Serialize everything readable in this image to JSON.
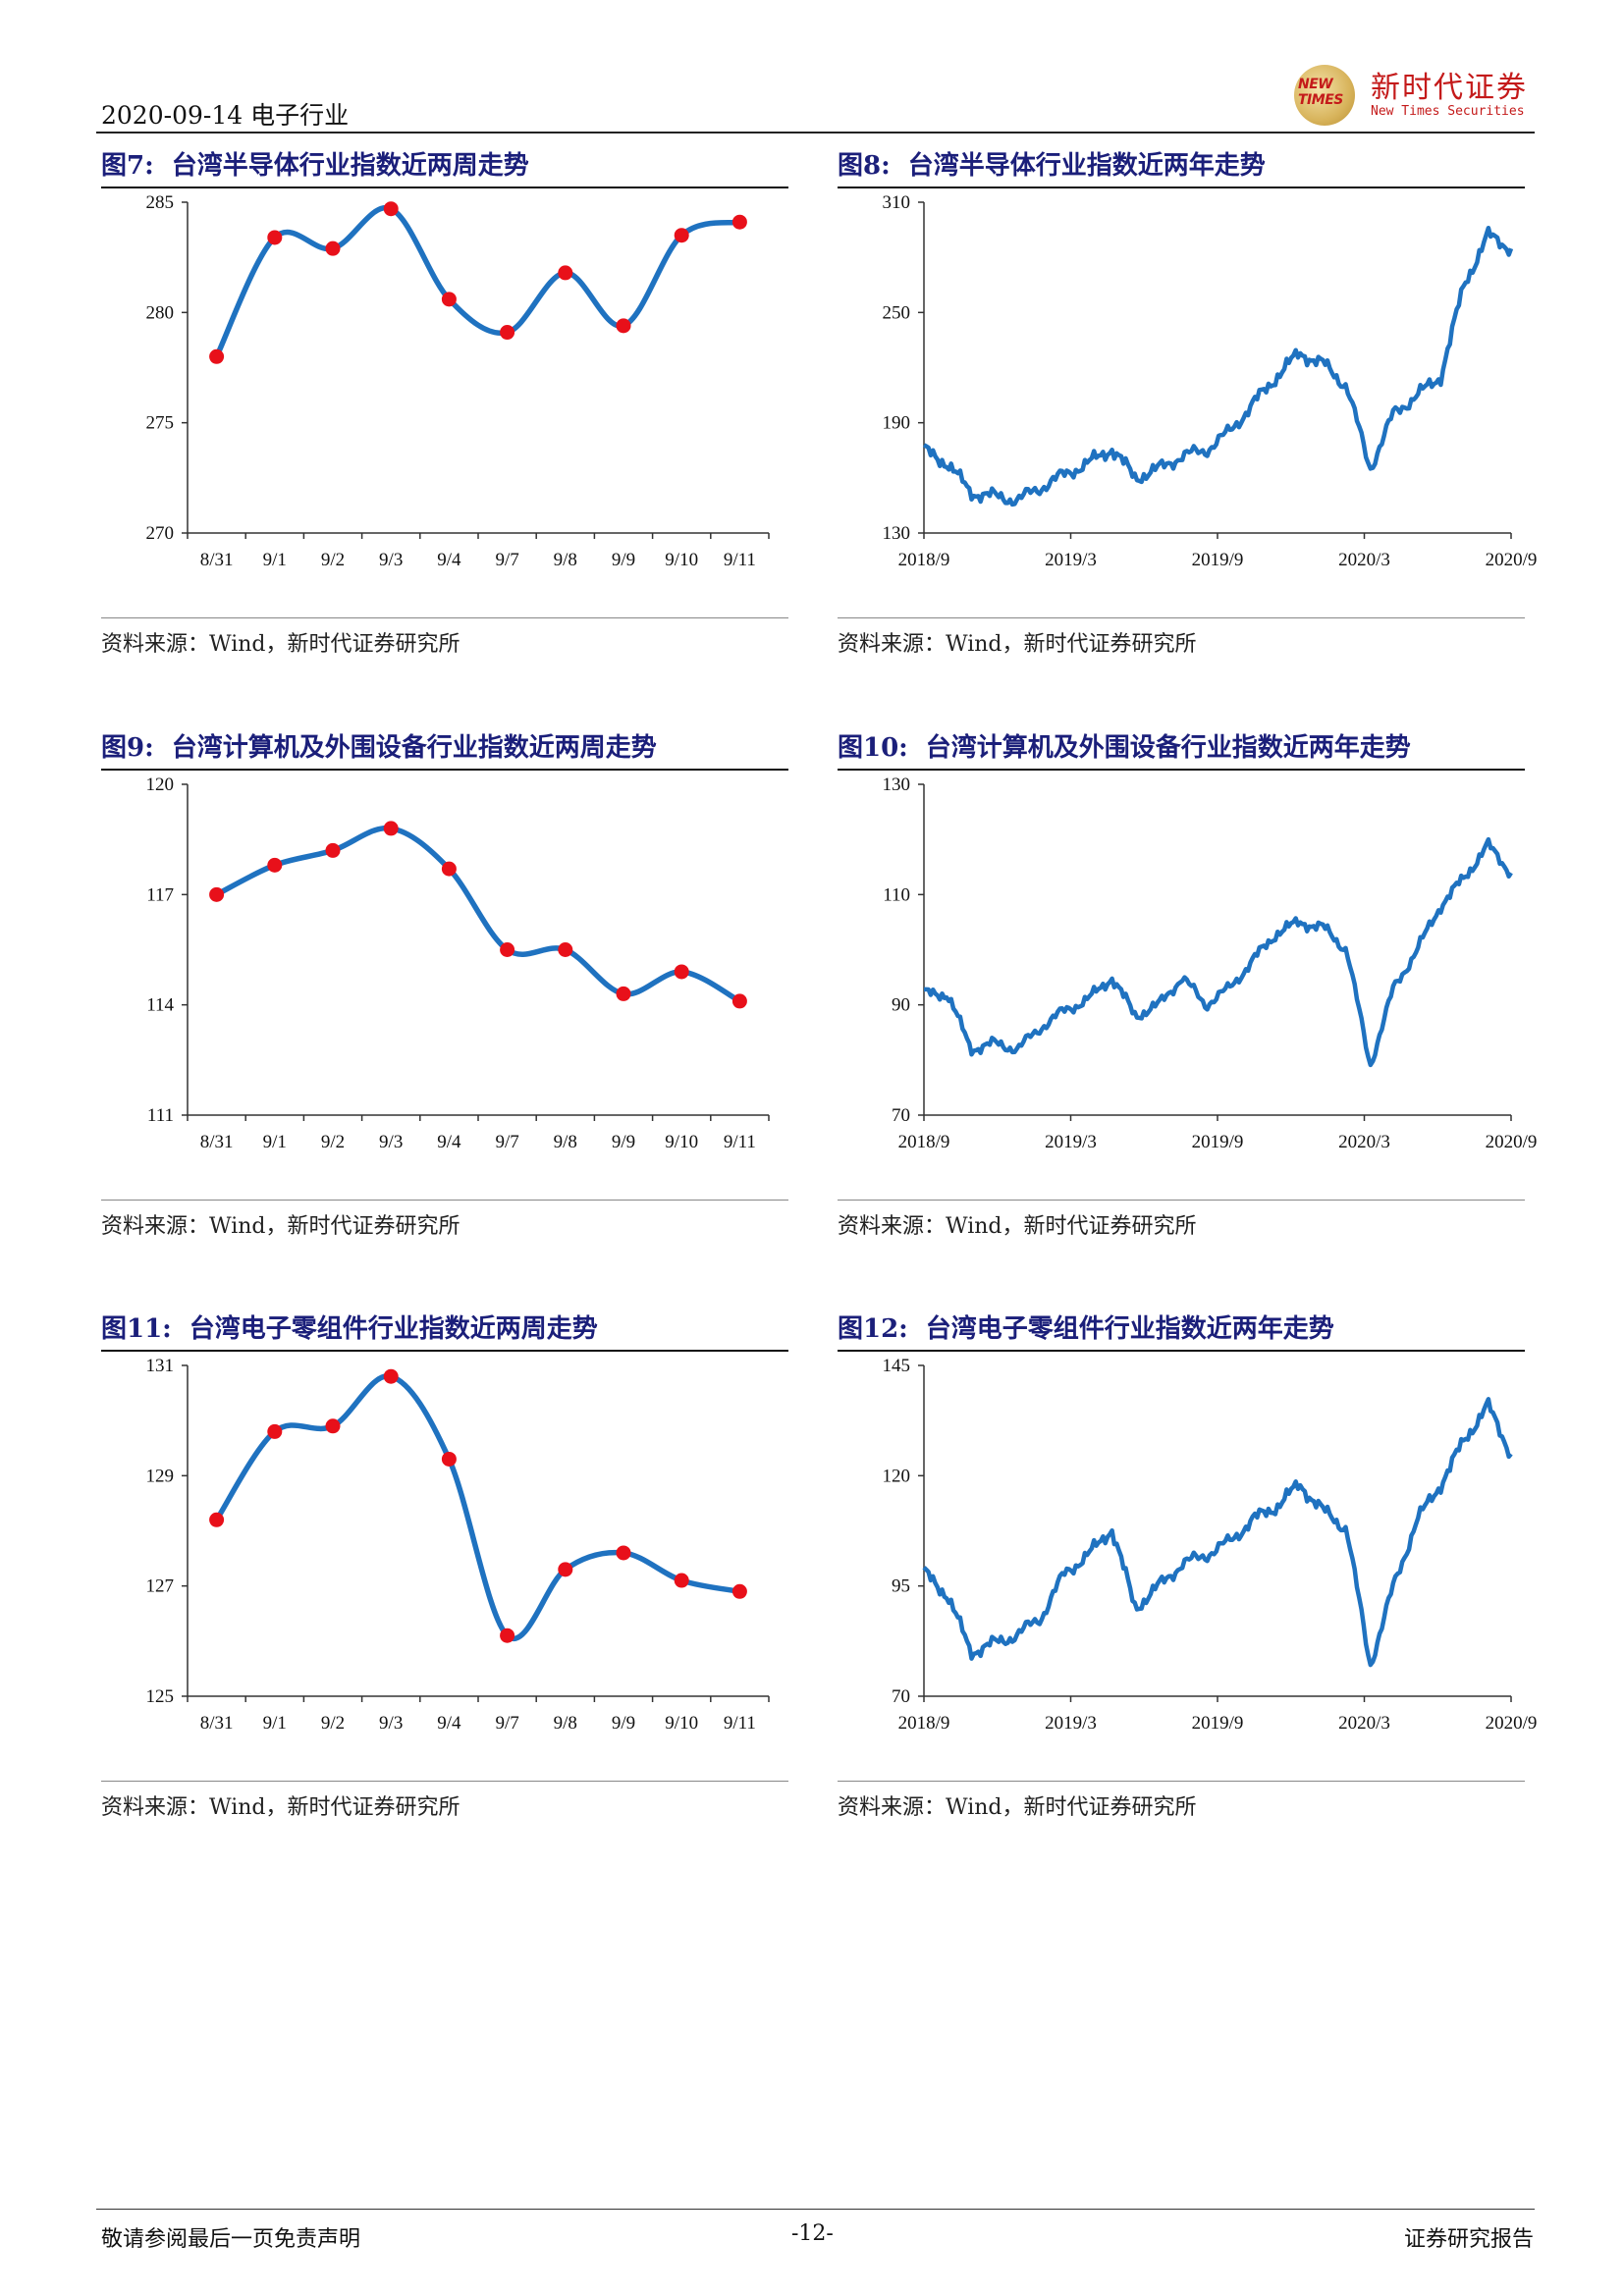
{
  "header": {
    "date_industry": "2020-09-14  电子行业"
  },
  "logo": {
    "badge": "NEW TIMES",
    "name_cn": "新时代证券",
    "name_en": "New Times Securities"
  },
  "footer": {
    "disclaimer": "敬请参阅最后一页免责声明",
    "page": "-12-",
    "report_type": "证券研究报告"
  },
  "colors": {
    "line": "#1f72c0",
    "marker": "#e8101a",
    "title": "#1b1f7a"
  },
  "figures": [
    {
      "num": "图7:",
      "title": "台湾半导体行业指数近两周走势",
      "source": "资料来源：Wind，新时代证券研究所"
    },
    {
      "num": "图8:",
      "title": "台湾半导体行业指数近两年走势",
      "source": "资料来源：Wind，新时代证券研究所"
    },
    {
      "num": "图9:",
      "title": "台湾计算机及外围设备行业指数近两周走势",
      "source": "资料来源：Wind，新时代证券研究所"
    },
    {
      "num": "图10:",
      "title": "台湾计算机及外围设备行业指数近两年走势",
      "source": "资料来源：Wind，新时代证券研究所"
    },
    {
      "num": "图11:",
      "title": "台湾电子零组件行业指数近两周走势",
      "source": "资料来源：Wind，新时代证券研究所"
    },
    {
      "num": "图12:",
      "title": "台湾电子零组件行业指数近两年走势",
      "source": "资料来源：Wind，新时代证券研究所"
    }
  ],
  "chart_data": [
    {
      "type": "line",
      "markers": true,
      "categories": [
        "8/31",
        "9/1",
        "9/2",
        "9/3",
        "9/4",
        "9/7",
        "9/8",
        "9/9",
        "9/10",
        "9/11"
      ],
      "values": [
        278.0,
        283.4,
        282.9,
        284.7,
        280.6,
        279.1,
        281.8,
        279.4,
        283.5,
        284.1
      ],
      "ylim": [
        270,
        285
      ],
      "yticks": [
        270,
        275,
        280,
        285
      ]
    },
    {
      "type": "line",
      "markers": false,
      "x": [
        "2018-09",
        "2018-10",
        "2018-11",
        "2018-12",
        "2019-01",
        "2019-02",
        "2019-03",
        "2019-04",
        "2019-05",
        "2019-06",
        "2019-07",
        "2019-08",
        "2019-09",
        "2019-10",
        "2019-11",
        "2019-12",
        "2020-01",
        "2020-02",
        "2020-03",
        "2020-03",
        "2020-04",
        "2020-05",
        "2020-06",
        "2020-07",
        "2020-08",
        "2020-09"
      ],
      "values": [
        175,
        168,
        152,
        150,
        148,
        155,
        162,
        168,
        176,
        160,
        165,
        172,
        175,
        185,
        200,
        215,
        228,
        222,
        210,
        165,
        195,
        205,
        215,
        265,
        292,
        285
      ],
      "xticks": [
        "2018/9",
        "2019/3",
        "2019/9",
        "2020/3",
        "2020/9"
      ],
      "ylim": [
        130,
        310
      ],
      "yticks": [
        130,
        190,
        250,
        310
      ]
    },
    {
      "type": "line",
      "markers": true,
      "categories": [
        "8/31",
        "9/1",
        "9/2",
        "9/3",
        "9/4",
        "9/7",
        "9/8",
        "9/9",
        "9/10",
        "9/11"
      ],
      "values": [
        117.0,
        117.8,
        118.2,
        118.8,
        117.7,
        115.5,
        115.5,
        114.3,
        114.9,
        114.1
      ],
      "ylim": [
        111,
        120
      ],
      "yticks": [
        111,
        114,
        117,
        120
      ]
    },
    {
      "type": "line",
      "markers": false,
      "x": [
        "2018-09",
        "2018-10",
        "2018-11",
        "2018-12",
        "2019-01",
        "2019-02",
        "2019-03",
        "2019-04",
        "2019-05",
        "2019-06",
        "2019-07",
        "2019-08",
        "2019-09",
        "2019-10",
        "2019-11",
        "2019-12",
        "2020-01",
        "2020-02",
        "2020-03",
        "2020-03",
        "2020-04",
        "2020-05",
        "2020-06",
        "2020-07",
        "2020-08",
        "2020-09"
      ],
      "values": [
        92,
        92,
        82,
        83,
        82,
        86,
        89,
        91,
        95,
        88,
        90,
        95,
        90,
        93,
        98,
        103,
        105,
        104,
        100,
        79,
        93,
        100,
        108,
        113,
        119,
        114
      ],
      "xticks": [
        "2018/9",
        "2019/3",
        "2019/9",
        "2020/3",
        "2020/9"
      ],
      "ylim": [
        70,
        130
      ],
      "yticks": [
        70,
        90,
        110,
        130
      ]
    },
    {
      "type": "line",
      "markers": true,
      "categories": [
        "8/31",
        "9/1",
        "9/2",
        "9/3",
        "9/4",
        "9/7",
        "9/8",
        "9/9",
        "9/10",
        "9/11"
      ],
      "values": [
        128.2,
        129.8,
        129.9,
        130.8,
        129.3,
        126.1,
        127.3,
        127.6,
        127.1,
        126.9
      ],
      "ylim": [
        125,
        131
      ],
      "yticks": [
        125,
        127,
        129,
        131
      ]
    },
    {
      "type": "line",
      "markers": false,
      "x": [
        "2018-09",
        "2018-10",
        "2018-11",
        "2018-12",
        "2019-01",
        "2019-02",
        "2019-03",
        "2019-04",
        "2019-05",
        "2019-06",
        "2019-07",
        "2019-08",
        "2019-09",
        "2019-10",
        "2019-11",
        "2019-12",
        "2020-01",
        "2020-02",
        "2020-03",
        "2020-03",
        "2020-04",
        "2020-05",
        "2020-06",
        "2020-07",
        "2020-08",
        "2020-09"
      ],
      "values": [
        98,
        93,
        80,
        82,
        84,
        88,
        98,
        102,
        108,
        90,
        95,
        100,
        102,
        105,
        110,
        113,
        118,
        112,
        108,
        77,
        95,
        110,
        118,
        128,
        136,
        125
      ],
      "xticks": [
        "2018/9",
        "2019/3",
        "2019/9",
        "2020/3",
        "2020/9"
      ],
      "ylim": [
        70,
        145
      ],
      "yticks": [
        70,
        95,
        120,
        145
      ]
    }
  ]
}
